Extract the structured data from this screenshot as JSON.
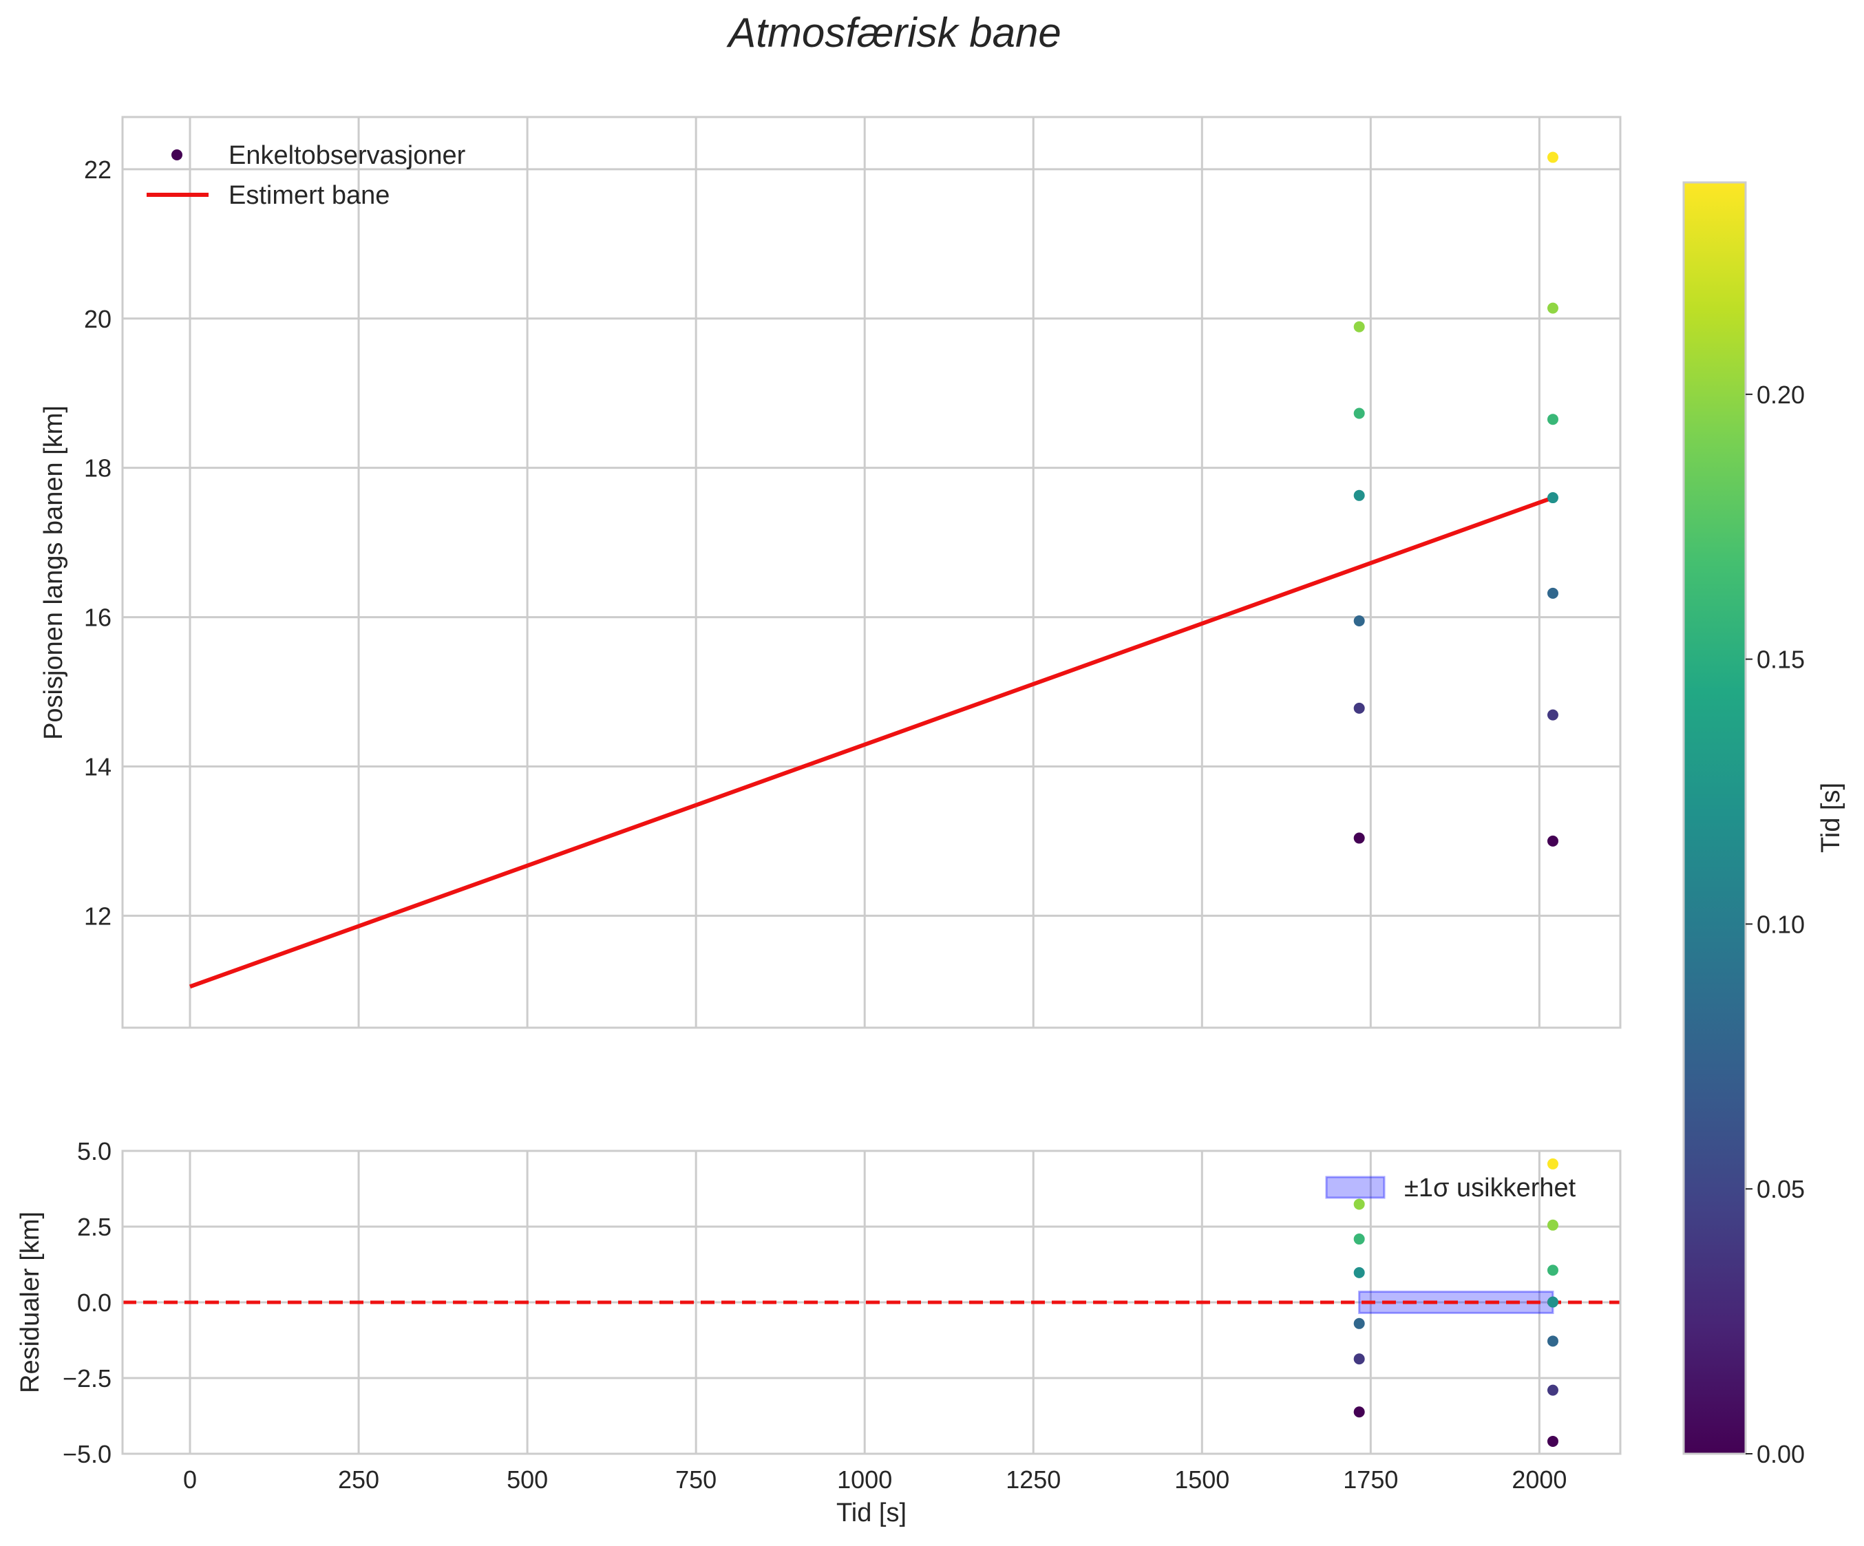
{
  "chart_data": {
    "title": "Atmosfærisk bane",
    "xlabel": "Tid [s]",
    "xlim": [
      -100,
      2120
    ],
    "xticks": [
      0,
      250,
      500,
      750,
      1000,
      1250,
      1500,
      1750,
      2000
    ],
    "main": {
      "type": "scatter",
      "ylabel": "Posisjonen langs banen [km]",
      "ylim": [
        10.5,
        22.7
      ],
      "yticks": [
        12,
        14,
        16,
        18,
        20,
        22
      ],
      "legend": {
        "position": "top-left",
        "entries": [
          "Enkeltobservasjoner",
          "Estimert bane"
        ]
      },
      "scatter_name": "Enkeltobservasjoner",
      "points": [
        {
          "x": 1733,
          "y": 13.04,
          "c": 0.0
        },
        {
          "x": 1733,
          "y": 14.78,
          "c": 0.04
        },
        {
          "x": 1733,
          "y": 15.95,
          "c": 0.08
        },
        {
          "x": 1733,
          "y": 17.63,
          "c": 0.12
        },
        {
          "x": 1733,
          "y": 18.73,
          "c": 0.16
        },
        {
          "x": 1733,
          "y": 19.89,
          "c": 0.2
        },
        {
          "x": 2020,
          "y": 13.0,
          "c": 0.0
        },
        {
          "x": 2020,
          "y": 14.69,
          "c": 0.04
        },
        {
          "x": 2020,
          "y": 16.32,
          "c": 0.08
        },
        {
          "x": 2020,
          "y": 17.6,
          "c": 0.12
        },
        {
          "x": 2020,
          "y": 18.65,
          "c": 0.16
        },
        {
          "x": 2020,
          "y": 20.14,
          "c": 0.2
        },
        {
          "x": 2020,
          "y": 22.16,
          "c": 0.24
        }
      ],
      "line": {
        "name": "Estimert bane",
        "color": "#ee1111",
        "x": [
          0,
          2020
        ],
        "y": [
          11.05,
          17.6
        ]
      }
    },
    "residuals": {
      "type": "scatter",
      "ylabel": "Residualer [km]",
      "ylim": [
        -5.0,
        5.0
      ],
      "yticks": [
        5.0,
        2.5,
        0.0,
        -2.5,
        -5.0
      ],
      "ytick_labels": [
        "5.0",
        "2.5",
        "0.0",
        "−2.5",
        "−5.0"
      ],
      "zero_line_color": "#ee1111",
      "band": {
        "name": "±1σ usikkerhet",
        "x": [
          1733,
          2020
        ],
        "y": [
          -0.35,
          0.35
        ],
        "color": "#0000ff"
      },
      "legend": {
        "position": "top-right",
        "entries": [
          "±1σ usikkerhet"
        ]
      },
      "points": [
        {
          "x": 1733,
          "y": -3.62,
          "c": 0.0
        },
        {
          "x": 1733,
          "y": -1.87,
          "c": 0.04
        },
        {
          "x": 1733,
          "y": -0.7,
          "c": 0.08
        },
        {
          "x": 1733,
          "y": 0.98,
          "c": 0.12
        },
        {
          "x": 1733,
          "y": 2.09,
          "c": 0.16
        },
        {
          "x": 1733,
          "y": 3.24,
          "c": 0.2
        },
        {
          "x": 2020,
          "y": -4.59,
          "c": 0.0
        },
        {
          "x": 2020,
          "y": -2.9,
          "c": 0.04
        },
        {
          "x": 2020,
          "y": -1.28,
          "c": 0.08
        },
        {
          "x": 2020,
          "y": 0.01,
          "c": 0.12
        },
        {
          "x": 2020,
          "y": 1.06,
          "c": 0.16
        },
        {
          "x": 2020,
          "y": 2.55,
          "c": 0.2
        },
        {
          "x": 2020,
          "y": 4.57,
          "c": 0.24
        }
      ]
    },
    "colorbar": {
      "label": "Tid [s]",
      "colormap": "viridis",
      "range": [
        0.0,
        0.24
      ],
      "ticks": [
        0.0,
        0.05,
        0.1,
        0.15,
        0.2
      ],
      "tick_labels": [
        "0.00",
        "0.05",
        "0.10",
        "0.15",
        "0.20"
      ]
    }
  }
}
